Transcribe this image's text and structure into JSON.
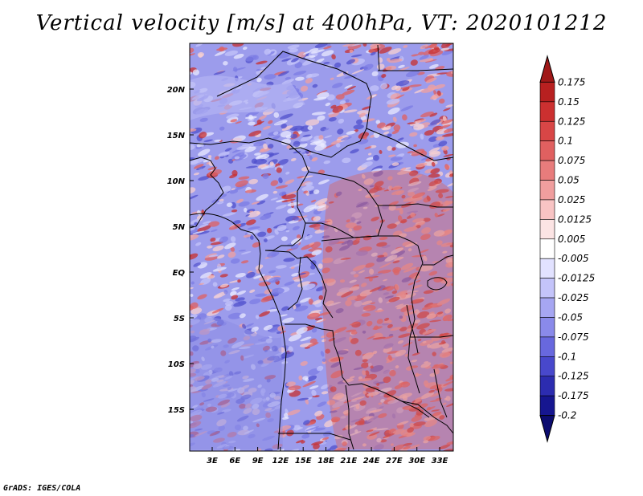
{
  "title": "Vertical velocity [m/s] at 400hPa, VT: 2020101212",
  "credit": "GrADS: IGES/COLA",
  "map": {
    "region": "Central Africa",
    "lat_labels": [
      "20N",
      "15N",
      "10N",
      "5N",
      "EQ",
      "5S",
      "10S",
      "15S"
    ],
    "lon_labels": [
      "3E",
      "6E",
      "9E",
      "12E",
      "15E",
      "18E",
      "21E",
      "24E",
      "27E",
      "30E",
      "33E"
    ]
  },
  "colorbar": {
    "labels": [
      "0.175",
      "0.15",
      "0.125",
      "0.1",
      "0.075",
      "0.05",
      "0.025",
      "0.0125",
      "0.005",
      "-0.005",
      "-0.0125",
      "-0.025",
      "-0.05",
      "-0.075",
      "-0.1",
      "-0.125",
      "-0.175",
      "-0.2"
    ],
    "colors": [
      "#a01818",
      "#b82020",
      "#cc3030",
      "#d84646",
      "#e06060",
      "#e87c7c",
      "#f09e9e",
      "#f8c4c4",
      "#fce4e4",
      "#ffffff",
      "#e2e2ff",
      "#c4c4fa",
      "#a6a6f2",
      "#8a8aea",
      "#6868de",
      "#4848cc",
      "#2c2cb0",
      "#161690",
      "#0c0c70"
    ]
  }
}
